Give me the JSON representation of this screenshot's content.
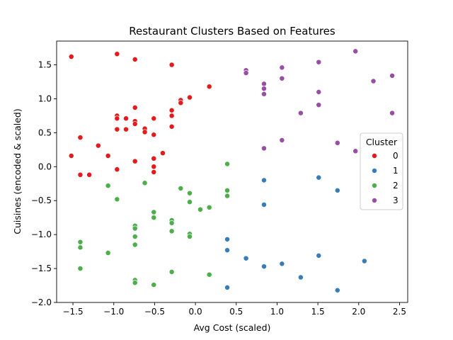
{
  "chart_data": {
    "type": "scatter",
    "title": "Restaurant Clusters Based on Features",
    "xlabel": "Avg Cost (scaled)",
    "ylabel": "Cuisines (encoded & scaled)",
    "xlim": [
      -1.7,
      2.6
    ],
    "ylim": [
      -2.0,
      1.85
    ],
    "xticks": [
      -1.5,
      -1.0,
      -0.5,
      0.0,
      0.5,
      1.0,
      1.5,
      2.0,
      2.5
    ],
    "yticks": [
      -2.0,
      -1.5,
      -1.0,
      -0.5,
      0.0,
      0.5,
      1.0,
      1.5
    ],
    "xtick_labels": [
      "−1.5",
      "−1.0",
      "−0.5",
      "0.0",
      "0.5",
      "1.0",
      "1.5",
      "2.0",
      "2.5"
    ],
    "ytick_labels": [
      "−2.0",
      "−1.5",
      "−1.0",
      "−0.5",
      "0.0",
      "0.5",
      "1.0",
      "1.5"
    ],
    "grid": false,
    "legend": {
      "title": "Cluster",
      "placement": "right"
    },
    "series": [
      {
        "name": "0",
        "color": "#e41a1c",
        "points": [
          [
            -1.52,
            1.62
          ],
          [
            -0.96,
            1.66
          ],
          [
            -0.74,
            1.58
          ],
          [
            -0.29,
            1.5
          ],
          [
            0.17,
            1.18
          ],
          [
            -0.07,
            1.02
          ],
          [
            -0.18,
            0.98
          ],
          [
            -0.18,
            0.94
          ],
          [
            -0.74,
            0.87
          ],
          [
            -0.29,
            0.83
          ],
          [
            -0.96,
            0.75
          ],
          [
            -0.29,
            0.75
          ],
          [
            -0.96,
            0.71
          ],
          [
            -0.85,
            0.71
          ],
          [
            -0.51,
            0.71
          ],
          [
            -0.74,
            0.67
          ],
          [
            -0.74,
            0.63
          ],
          [
            -0.62,
            0.56
          ],
          [
            -0.29,
            0.59
          ],
          [
            -0.96,
            0.55
          ],
          [
            -0.85,
            0.55
          ],
          [
            -0.62,
            0.51
          ],
          [
            -0.51,
            0.47
          ],
          [
            -1.41,
            0.43
          ],
          [
            -1.19,
            0.31
          ],
          [
            -0.4,
            0.2
          ],
          [
            -1.07,
            0.16
          ],
          [
            -1.52,
            0.16
          ],
          [
            -0.51,
            0.12
          ],
          [
            -0.74,
            0.08
          ],
          [
            -0.51,
            0.0
          ],
          [
            -0.96,
            -0.04
          ],
          [
            -0.51,
            -0.08
          ],
          [
            -1.41,
            -0.12
          ],
          [
            -1.3,
            -0.12
          ]
        ]
      },
      {
        "name": "1",
        "color": "#377eb8",
        "points": [
          [
            1.51,
            -0.16
          ],
          [
            0.84,
            -0.2
          ],
          [
            1.74,
            -0.35
          ],
          [
            0.84,
            -0.56
          ],
          [
            0.39,
            -1.07
          ],
          [
            0.39,
            -1.23
          ],
          [
            0.62,
            -1.35
          ],
          [
            2.07,
            -1.39
          ],
          [
            1.06,
            -1.43
          ],
          [
            0.84,
            -1.47
          ],
          [
            1.51,
            -1.31
          ],
          [
            1.29,
            -1.63
          ],
          [
            0.39,
            -1.78
          ],
          [
            1.74,
            -1.82
          ]
        ]
      },
      {
        "name": "2",
        "color": "#4daf4a",
        "points": [
          [
            0.39,
            0.04
          ],
          [
            -0.62,
            -0.24
          ],
          [
            -1.07,
            -0.28
          ],
          [
            -0.18,
            -0.32
          ],
          [
            0.39,
            -0.35
          ],
          [
            -0.07,
            -0.39
          ],
          [
            0.39,
            -0.43
          ],
          [
            -0.96,
            -0.48
          ],
          [
            -0.07,
            -0.52
          ],
          [
            0.17,
            -0.6
          ],
          [
            0.06,
            -0.63
          ],
          [
            -0.51,
            -0.67
          ],
          [
            -0.51,
            -0.75
          ],
          [
            -0.29,
            -0.79
          ],
          [
            -0.29,
            -0.83
          ],
          [
            -0.74,
            -0.87
          ],
          [
            -0.74,
            -0.91
          ],
          [
            -0.29,
            -0.95
          ],
          [
            -0.07,
            -0.99
          ],
          [
            -0.07,
            -1.03
          ],
          [
            -0.74,
            -1.03
          ],
          [
            -1.41,
            -1.11
          ],
          [
            -0.74,
            -1.15
          ],
          [
            -1.41,
            -1.19
          ],
          [
            -1.07,
            -1.27
          ],
          [
            -1.41,
            -1.5
          ],
          [
            -0.29,
            -1.55
          ],
          [
            0.17,
            -1.59
          ],
          [
            -0.74,
            -1.67
          ],
          [
            -0.74,
            -1.71
          ],
          [
            -0.51,
            -1.74
          ]
        ]
      },
      {
        "name": "3",
        "color": "#984ea3",
        "points": [
          [
            1.96,
            1.7
          ],
          [
            1.51,
            1.54
          ],
          [
            1.06,
            1.46
          ],
          [
            0.62,
            1.42
          ],
          [
            0.62,
            1.38
          ],
          [
            2.41,
            1.34
          ],
          [
            1.06,
            1.3
          ],
          [
            2.18,
            1.26
          ],
          [
            0.84,
            1.22
          ],
          [
            0.84,
            1.15
          ],
          [
            1.51,
            1.1
          ],
          [
            0.84,
            1.07
          ],
          [
            1.51,
            0.91
          ],
          [
            1.29,
            0.79
          ],
          [
            2.41,
            0.79
          ],
          [
            1.06,
            0.39
          ],
          [
            1.74,
            0.35
          ],
          [
            0.84,
            0.27
          ],
          [
            1.96,
            0.23
          ]
        ]
      }
    ]
  }
}
